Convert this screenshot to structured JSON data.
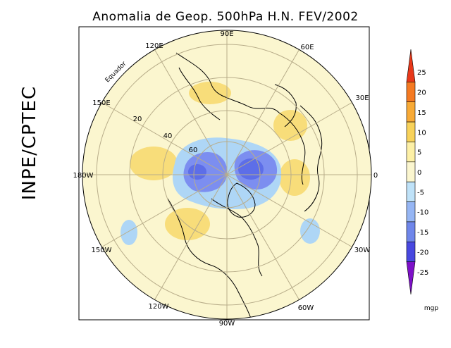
{
  "title": "Anomalia de Geop. 500hPa H.N. FEV/2002",
  "side_label": "INPE/CPTEC",
  "map": {
    "projection": "north polar stereographic",
    "longitude_labels": [
      "90E",
      "60E",
      "30E",
      "0",
      "30W",
      "60W",
      "90W",
      "120W",
      "150W",
      "180W",
      "150E",
      "120E"
    ],
    "latitude_labels": [
      "20",
      "40",
      "60"
    ],
    "equator_label": "Equador"
  },
  "colorbar": {
    "unit": "mgp",
    "tick_labels": [
      "25",
      "20",
      "15",
      "10",
      "5",
      "0",
      "-5",
      "-10",
      "-15",
      "-20",
      "-25"
    ],
    "colors": [
      "#e8381a",
      "#f57a22",
      "#f8aa36",
      "#f8d25a",
      "#fdf0a6",
      "#fbf6cf",
      "#bfe2f8",
      "#96b6f4",
      "#6f86ea",
      "#4848e0",
      "#7d10c8"
    ]
  },
  "anomaly_fields": {
    "positive_color": "#f8dd7a",
    "weak_negative_color": "#aed6f6",
    "strong_negative_color": "#7c8ef0",
    "strongest_negative_color": "#5d6ee8",
    "background_color": "#fbf6cf"
  }
}
